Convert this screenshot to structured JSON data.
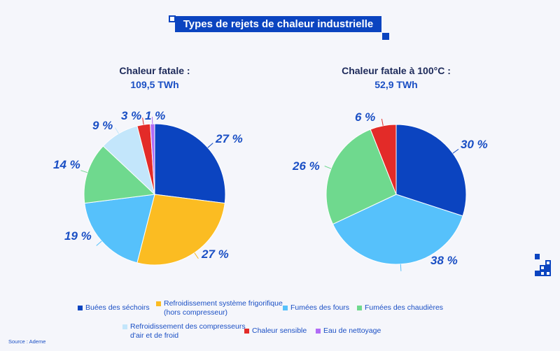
{
  "title": "Types de rejets de chaleur industrielle",
  "source": "Source : Ademe",
  "chart_data": [
    {
      "type": "pie",
      "title": "Chaleur fatale :",
      "subtitle": "109,5 TWh",
      "categories": [
        "Buées des séchoirs",
        "Refroidissement système frigorifique (hors compresseur)",
        "Fumées des fours",
        "Fumées des chaudières",
        "Refroidissement des compresseurs d'air et de froid",
        "Chaleur sensible",
        "Eau de nettoyage"
      ],
      "values": [
        27,
        27,
        19,
        14,
        9,
        3,
        1
      ],
      "labels": [
        "27 %",
        "27 %",
        "19 %",
        "14 %",
        "9 %",
        "3 %",
        "1 %"
      ],
      "colors": [
        "#0b44c0",
        "#fbbc22",
        "#56c1fb",
        "#6fd98e",
        "#c3e6fb",
        "#e32b28",
        "#b16cf6"
      ]
    },
    {
      "type": "pie",
      "title": "Chaleur fatale à 100°C :",
      "subtitle": "52,9 TWh",
      "categories": [
        "Buées des séchoirs",
        "Fumées des fours",
        "Fumées des chaudières",
        "Chaleur sensible"
      ],
      "values": [
        30,
        38,
        26,
        6
      ],
      "labels": [
        "30 %",
        "38 %",
        "26 %",
        "6 %"
      ],
      "colors": [
        "#0b44c0",
        "#56c1fb",
        "#6fd98e",
        "#e32b28"
      ]
    }
  ],
  "legend": [
    {
      "label": "Buées des séchoirs",
      "color": "#0b44c0"
    },
    {
      "label": "Refroidissement système frigorifique (hors compresseur)",
      "color": "#fbbc22"
    },
    {
      "label": "Fumées des fours",
      "color": "#56c1fb"
    },
    {
      "label": "Fumées des chaudières",
      "color": "#6fd98e"
    },
    {
      "label": "Refroidissement des compresseurs d'air et de froid",
      "color": "#c3e6fb"
    },
    {
      "label": "Chaleur sensible",
      "color": "#e32b28"
    },
    {
      "label": "Eau de nettoyage",
      "color": "#b16cf6"
    }
  ]
}
